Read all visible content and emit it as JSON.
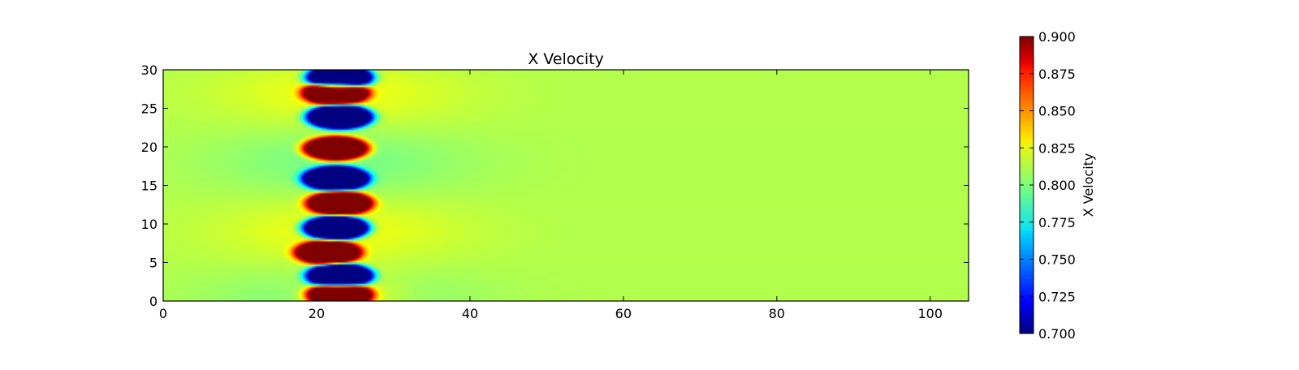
{
  "chart_data": {
    "type": "heatmap",
    "title": "X Velocity",
    "xlabel": "",
    "ylabel": "",
    "xlim": [
      0,
      105
    ],
    "ylim": [
      0,
      30
    ],
    "x_ticks": [
      0,
      20,
      40,
      60,
      80,
      100
    ],
    "y_ticks": [
      0,
      5,
      10,
      15,
      20,
      25,
      30
    ],
    "colormap": "jet",
    "colorbar": {
      "label": "X Velocity",
      "range": [
        0.7,
        0.9
      ],
      "ticks": [
        "0.700",
        "0.725",
        "0.750",
        "0.775",
        "0.800",
        "0.825",
        "0.850",
        "0.875",
        "0.900"
      ]
    },
    "background_value": 0.81,
    "vortex_column": {
      "x_center": 23,
      "x_extent": [
        18,
        28
      ],
      "blobs": [
        {
          "x": 23.0,
          "y": 29.0,
          "value": 0.7
        },
        {
          "x": 22.5,
          "y": 27.0,
          "value": 0.9
        },
        {
          "x": 23.0,
          "y": 23.9,
          "value": 0.7
        },
        {
          "x": 22.5,
          "y": 19.8,
          "value": 0.9
        },
        {
          "x": 22.5,
          "y": 15.9,
          "value": 0.7
        },
        {
          "x": 23.0,
          "y": 12.7,
          "value": 0.9
        },
        {
          "x": 22.5,
          "y": 9.5,
          "value": 0.7
        },
        {
          "x": 21.5,
          "y": 6.3,
          "value": 0.9
        },
        {
          "x": 23.0,
          "y": 3.3,
          "value": 0.7
        },
        {
          "x": 23.0,
          "y": 0.8,
          "value": 0.9
        }
      ]
    },
    "grid": false
  }
}
